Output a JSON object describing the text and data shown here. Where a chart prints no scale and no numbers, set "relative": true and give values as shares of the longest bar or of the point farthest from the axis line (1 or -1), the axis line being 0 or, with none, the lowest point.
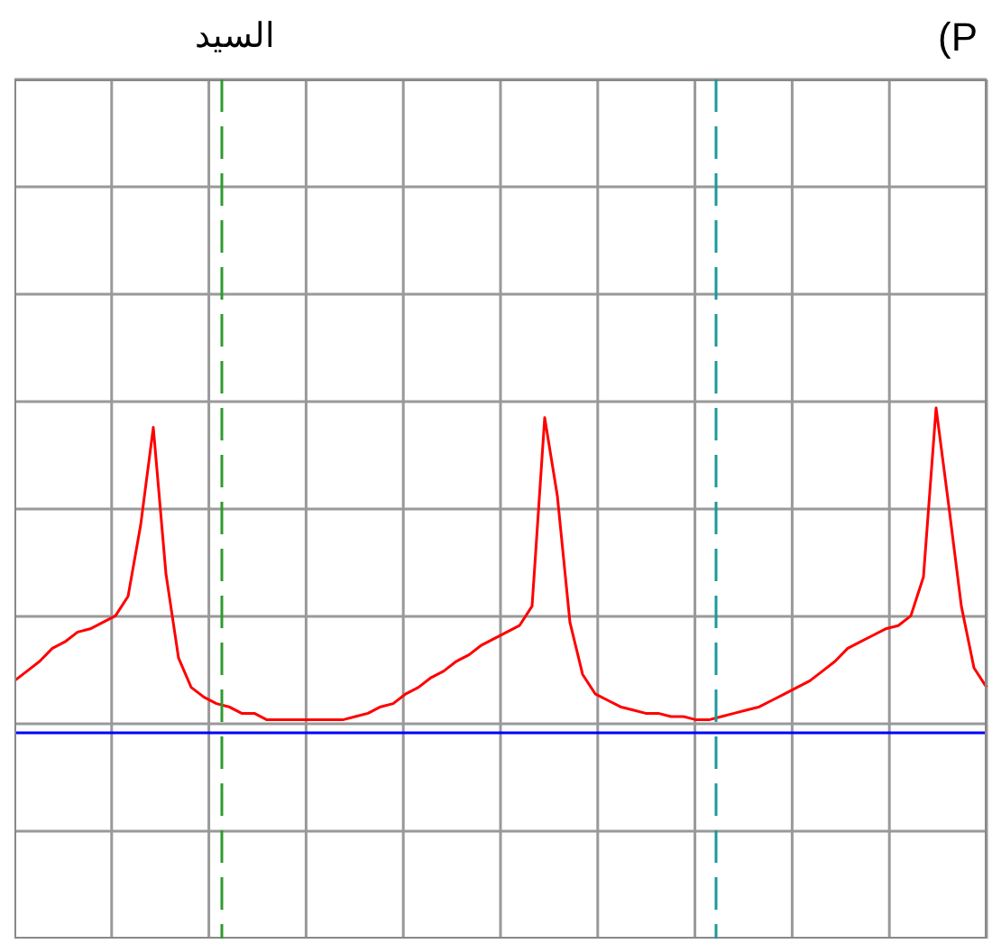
{
  "chart_data": {
    "type": "line",
    "title": "السيد",
    "annotations": [
      "(P"
    ],
    "relative": true,
    "grid": true,
    "marker": "none",
    "line_style": "solid",
    "categories": [
      null,
      null,
      null,
      null,
      null,
      null,
      null,
      null,
      null,
      null,
      null,
      null,
      null,
      null,
      null,
      null,
      null,
      null,
      null,
      null,
      null,
      null,
      null,
      null,
      null,
      null,
      null,
      null,
      null,
      null,
      null,
      null,
      null,
      null,
      null,
      null,
      null,
      null,
      null,
      null,
      null,
      null,
      null,
      null,
      null,
      null,
      null,
      null,
      null,
      null,
      null,
      null,
      null,
      null,
      null,
      null,
      null,
      null,
      null,
      null,
      null,
      null,
      null,
      null,
      null,
      null,
      null,
      null,
      null,
      null,
      null,
      null,
      null,
      null,
      null,
      null,
      null,
      null
    ],
    "series": [
      {
        "color": "#ff0000",
        "values": [
          0.16,
          0.19,
          0.22,
          0.26,
          0.28,
          0.31,
          0.32,
          0.34,
          0.36,
          0.42,
          0.64,
          0.94,
          0.49,
          0.23,
          0.14,
          0.11,
          0.09,
          0.08,
          0.06,
          0.06,
          0.04,
          0.04,
          0.04,
          0.04,
          0.04,
          0.04,
          0.04,
          0.05,
          0.06,
          0.08,
          0.09,
          0.12,
          0.14,
          0.17,
          0.19,
          0.22,
          0.24,
          0.27,
          0.29,
          0.31,
          0.33,
          0.39,
          0.97,
          0.73,
          0.34,
          0.18,
          0.12,
          0.1,
          0.08,
          0.07,
          0.06,
          0.06,
          0.05,
          0.05,
          0.04,
          0.04,
          0.05,
          0.06,
          0.07,
          0.08,
          0.1,
          0.12,
          0.14,
          0.16,
          0.19,
          0.22,
          0.26,
          0.28,
          0.3,
          0.32,
          0.33,
          0.36,
          0.48,
          1,
          0.7,
          0.39,
          0.2,
          0.14
        ]
      }
    ],
    "ref_lines": [
      {
        "axis": "y",
        "value": 0,
        "color": "#0000ff"
      }
    ]
  }
}
